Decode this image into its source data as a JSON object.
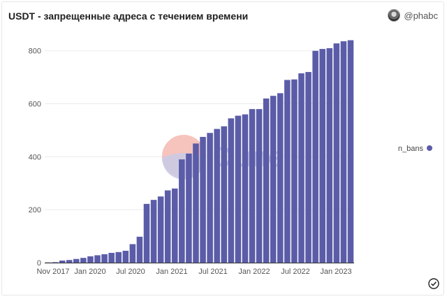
{
  "header": {
    "title": "USDT - запрещенные адреса с течением времени",
    "author": "@phabc"
  },
  "watermark": {
    "text": "Dune"
  },
  "colors": {
    "bar": "#5b5ca8",
    "watermark_red": "#f4b8b2",
    "watermark_blue": "#c9cbe8"
  },
  "chart_data": {
    "type": "bar",
    "title": "USDT - запрещенные адреса с течением времени",
    "xlabel": "",
    "ylabel": "",
    "ylim": [
      0,
      860
    ],
    "y_ticks": [
      0,
      200,
      400,
      600,
      800
    ],
    "x_tick_labels": [
      "Nov 2017",
      "Jan 2020",
      "Jul 2020",
      "Jan 2021",
      "Jul 2021",
      "Jan 2022",
      "Jul 2022",
      "Jan 2023"
    ],
    "legend": {
      "position": "right",
      "entries": [
        "n_bans"
      ]
    },
    "grid": true,
    "series": [
      {
        "name": "n_bans",
        "values": [
          1,
          2,
          8,
          10,
          14,
          18,
          24,
          28,
          32,
          37,
          40,
          45,
          70,
          98,
          222,
          237,
          250,
          273,
          280,
          390,
          412,
          450,
          475,
          490,
          505,
          515,
          545,
          555,
          560,
          580,
          580,
          620,
          630,
          640,
          690,
          692,
          715,
          720,
          800,
          807,
          810,
          828,
          836,
          840
        ]
      }
    ]
  }
}
